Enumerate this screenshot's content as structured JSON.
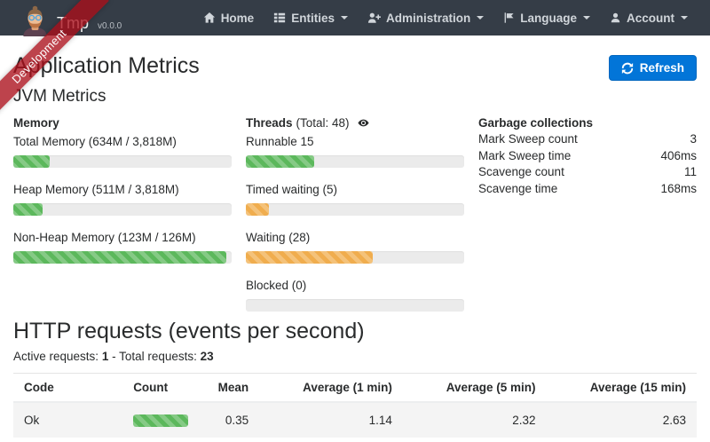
{
  "navbar": {
    "brand": {
      "name": "Tmp",
      "version": "v0.0.0"
    },
    "items": [
      {
        "label": "Home"
      },
      {
        "label": "Entities"
      },
      {
        "label": "Administration"
      },
      {
        "label": "Language"
      },
      {
        "label": "Account"
      }
    ]
  },
  "ribbon": {
    "label": "Development"
  },
  "page": {
    "title": "Application Metrics",
    "refresh_label": "Refresh",
    "jvm_title": "JVM Metrics"
  },
  "memory": {
    "title": "Memory",
    "items": [
      {
        "label": "Total Memory (634M / 3,818M)",
        "width": "16.6%",
        "color": "green"
      },
      {
        "label": "Heap Memory (511M / 3,818M)",
        "width": "13.4%",
        "color": "green"
      },
      {
        "label": "Non-Heap Memory (123M / 126M)",
        "width": "97.6%",
        "color": "green"
      }
    ]
  },
  "threads": {
    "title": "Threads",
    "total": "(Total: 48)",
    "items": [
      {
        "label": "Runnable 15",
        "width": "31.2%",
        "color": "green"
      },
      {
        "label": "Timed waiting (5)",
        "width": "10.4%",
        "color": "orange"
      },
      {
        "label": "Waiting (28)",
        "width": "58.3%",
        "color": "orange"
      },
      {
        "label": "Blocked (0)",
        "width": "0%",
        "color": "orange"
      }
    ]
  },
  "garbage": {
    "title": "Garbage collections",
    "rows": [
      {
        "label": "Mark Sweep count",
        "value": "3"
      },
      {
        "label": "Mark Sweep time",
        "value": "406ms"
      },
      {
        "label": "Scavenge count",
        "value": "11"
      },
      {
        "label": "Scavenge time",
        "value": "168ms"
      }
    ]
  },
  "http": {
    "title": "HTTP requests (events per second)",
    "active_label": "Active requests:",
    "active_value": "1",
    "dash": "-",
    "total_label": "Total requests:",
    "total_value": "23",
    "table": {
      "headers": [
        "Code",
        "Count",
        "Mean",
        "Average (1 min)",
        "Average (5 min)",
        "Average (15 min)"
      ],
      "rows": [
        {
          "code": "Ok",
          "count_width": "100%",
          "mean": "0.35",
          "avg_1min": "1.14",
          "avg_5min": "2.32",
          "avg_15min": "2.63"
        }
      ]
    }
  },
  "colors": {
    "navbar_bg": "#353d47",
    "primary_button": "#0275d8",
    "success_bar": "#5cb85c",
    "warning_bar": "#f0ad4e",
    "ribbon": "rgba(170,14,26,0.78)",
    "table_row_stripe": "#f4f4f4"
  }
}
